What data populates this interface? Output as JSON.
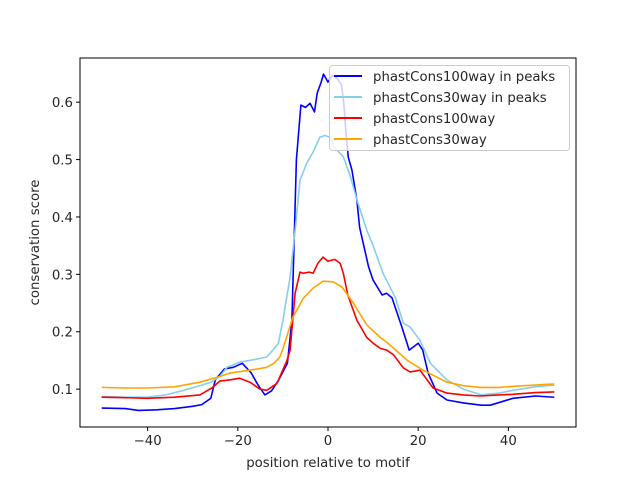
{
  "chart_data": {
    "type": "line",
    "title": "",
    "xlabel": "position relative to motif",
    "ylabel": "conservation score",
    "xlim": [
      -55,
      55
    ],
    "ylim": [
      0.034,
      0.677
    ],
    "xticks": [
      -40,
      -20,
      0,
      20,
      40
    ],
    "xtick_labels": [
      "−40",
      "−20",
      "0",
      "20",
      "40"
    ],
    "yticks": [
      0.1,
      0.2,
      0.3,
      0.4,
      0.5,
      0.6
    ],
    "ytick_labels": [
      "0.1",
      "0.2",
      "0.3",
      "0.4",
      "0.5",
      "0.6"
    ],
    "grid": false,
    "legend_position": "top-right",
    "series": [
      {
        "name": "phastCons100way in peaks",
        "color": "#0000ff",
        "x": [
          -50,
          -45,
          -42,
          -38,
          -34,
          -30,
          -28,
          -26,
          -25,
          -23,
          -21,
          -19,
          -17,
          -15.5,
          -14,
          -12.5,
          -11,
          -9,
          -8,
          -7,
          -6,
          -5,
          -4,
          -3,
          -2.4,
          -1.5,
          -1,
          0,
          1,
          2,
          3,
          3.5,
          4,
          4.5,
          5.3,
          6.4,
          7,
          9,
          10,
          12,
          13,
          14.2,
          16.4,
          18,
          20,
          21,
          22.2,
          24.2,
          26.4,
          30,
          34,
          36,
          41,
          46,
          50
        ],
        "y": [
          0.067,
          0.066,
          0.063,
          0.064,
          0.066,
          0.07,
          0.073,
          0.084,
          0.116,
          0.135,
          0.138,
          0.145,
          0.128,
          0.107,
          0.09,
          0.097,
          0.115,
          0.145,
          0.22,
          0.5,
          0.595,
          0.591,
          0.598,
          0.583,
          0.616,
          0.635,
          0.649,
          0.635,
          0.647,
          0.642,
          0.63,
          0.598,
          0.546,
          0.504,
          0.482,
          0.429,
          0.382,
          0.313,
          0.29,
          0.264,
          0.267,
          0.259,
          0.208,
          0.168,
          0.18,
          0.168,
          0.128,
          0.093,
          0.081,
          0.076,
          0.072,
          0.072,
          0.084,
          0.088,
          0.086
        ]
      },
      {
        "name": "phastCons30way in peaks",
        "color": "#87ceeb",
        "x": [
          -50,
          -45,
          -40,
          -36,
          -32,
          -28,
          -26,
          -24,
          -22.4,
          -19.6,
          -16,
          -13.6,
          -12,
          -11,
          -10,
          -8.4,
          -7.3,
          -6.2,
          -4.7,
          -3.3,
          -1.8,
          -0.7,
          0.4,
          1.5,
          2.7,
          3.4,
          5,
          6.4,
          8.6,
          10,
          12.2,
          14.9,
          16.7,
          18.2,
          20.4,
          22.7,
          26.4,
          30,
          34,
          38,
          41,
          46,
          50
        ],
        "y": [
          0.087,
          0.086,
          0.086,
          0.09,
          0.098,
          0.107,
          0.112,
          0.122,
          0.138,
          0.147,
          0.152,
          0.156,
          0.17,
          0.18,
          0.22,
          0.295,
          0.377,
          0.464,
          0.494,
          0.513,
          0.539,
          0.542,
          0.539,
          0.52,
          0.511,
          0.505,
          0.47,
          0.43,
          0.377,
          0.35,
          0.302,
          0.26,
          0.215,
          0.208,
          0.185,
          0.145,
          0.116,
          0.1,
          0.09,
          0.093,
          0.098,
          0.104,
          0.107
        ]
      },
      {
        "name": "phastCons100way",
        "color": "#ff0000",
        "x": [
          -50,
          -45,
          -40,
          -34,
          -28.4,
          -25.6,
          -24,
          -21.8,
          -19.6,
          -17.3,
          -15.1,
          -13.6,
          -11.3,
          -9.1,
          -8.4,
          -7.3,
          -6.2,
          -5.5,
          -4.2,
          -3.3,
          -2.2,
          -1.1,
          0,
          1.5,
          2.7,
          3.4,
          4.4,
          6.4,
          8.6,
          10,
          11.6,
          13,
          14.5,
          16.7,
          18.2,
          20.4,
          23.3,
          26.4,
          30,
          33.8,
          38,
          41,
          46,
          50
        ],
        "y": [
          0.086,
          0.085,
          0.084,
          0.086,
          0.09,
          0.103,
          0.114,
          0.116,
          0.119,
          0.112,
          0.1,
          0.098,
          0.11,
          0.15,
          0.168,
          0.267,
          0.304,
          0.302,
          0.304,
          0.302,
          0.32,
          0.33,
          0.323,
          0.326,
          0.319,
          0.302,
          0.264,
          0.22,
          0.19,
          0.18,
          0.171,
          0.168,
          0.16,
          0.137,
          0.13,
          0.133,
          0.102,
          0.093,
          0.09,
          0.088,
          0.09,
          0.091,
          0.094,
          0.095
        ]
      },
      {
        "name": "phastCons30way",
        "color": "#ffa500",
        "x": [
          -50,
          -45,
          -40,
          -34,
          -28.4,
          -24,
          -21.8,
          -17.3,
          -13.6,
          -12,
          -10.7,
          -10,
          -7.8,
          -5.5,
          -3.3,
          -1.1,
          1.1,
          3.1,
          5.6,
          8.6,
          11.6,
          13,
          17.6,
          21.1,
          26.4,
          30,
          33.8,
          38,
          41,
          46,
          50
        ],
        "y": [
          0.103,
          0.102,
          0.102,
          0.104,
          0.112,
          0.122,
          0.128,
          0.133,
          0.138,
          0.145,
          0.156,
          0.17,
          0.225,
          0.258,
          0.276,
          0.288,
          0.287,
          0.278,
          0.25,
          0.212,
          0.19,
          0.182,
          0.15,
          0.133,
          0.112,
          0.106,
          0.103,
          0.103,
          0.105,
          0.107,
          0.109
        ]
      }
    ]
  }
}
